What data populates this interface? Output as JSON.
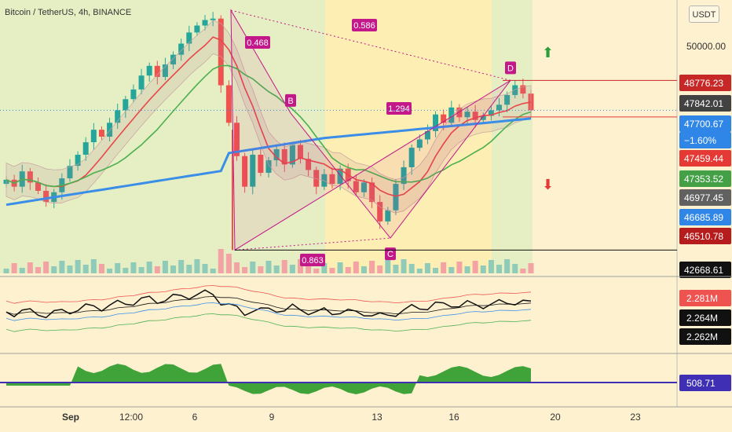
{
  "header": {
    "symbol_title": "Bitcoin / TetherUS, 4h, BINANCE",
    "currency_button": "USDT"
  },
  "colors": {
    "background": "#fdf1d0",
    "shade_green": "#e6efc4",
    "shade_yellow": "#fdefb4",
    "up_candle": "#26a69a",
    "down_candle": "#ef5350",
    "pattern": "#c2188a",
    "ema_red": "#e8474a",
    "ema_green": "#4caf50",
    "ema_blue": "#3b8ee8"
  },
  "chart_data": {
    "type": "candlestick",
    "x_tick_labels": [
      "Sep",
      "12:00",
      "6",
      "9",
      "13",
      "16",
      "20",
      "23"
    ],
    "y_tick_labels": [
      "50000.00"
    ],
    "price_labels": [
      {
        "text": "48776.23",
        "color": "#c62828"
      },
      {
        "text": "47842.01",
        "color": "#424242"
      },
      {
        "text": "47700.67",
        "color": "#2f86e6"
      },
      {
        "text": "−1.60%",
        "color": "#2f86e6"
      },
      {
        "text": "47459.44",
        "color": "#e53935"
      },
      {
        "text": "47353.52",
        "color": "#43a047"
      },
      {
        "text": "46977.45",
        "color": "#616161"
      },
      {
        "text": "46685.89",
        "color": "#2f86e6"
      },
      {
        "text": "46510.78",
        "color": "#b71c1c"
      },
      {
        "text": "42668.61",
        "color": "#111111"
      }
    ],
    "pattern_points": [
      "B",
      "C",
      "D"
    ],
    "pattern_ratios": [
      "0.468",
      "0.586",
      "1.294",
      "0.863"
    ],
    "close_series": [
      45200,
      44950,
      45500,
      45100,
      44800,
      44400,
      44750,
      45250,
      45700,
      46100,
      46550,
      47000,
      46750,
      47250,
      47700,
      48100,
      48450,
      48950,
      49300,
      48900,
      49350,
      49700,
      50100,
      50500,
      50750,
      50950,
      51000,
      48600,
      47250,
      46050,
      44950,
      46100,
      45450,
      45900,
      46300,
      45750,
      46450,
      45950,
      45550,
      44950,
      45400,
      45050,
      45600,
      45150,
      44750,
      45100,
      44400,
      43700,
      44100,
      45050,
      45650,
      46350,
      46650,
      46950,
      47550,
      47250,
      47800,
      47450,
      47650,
      47350,
      47500,
      47700,
      47900,
      48250,
      48600,
      48300,
      47700
    ],
    "sub_indicator_1": {
      "type": "line",
      "values": [
        "2.281M",
        "2.264M",
        "2.262M"
      ]
    },
    "sub_indicator_2": {
      "type": "area",
      "value": "508.71"
    }
  }
}
